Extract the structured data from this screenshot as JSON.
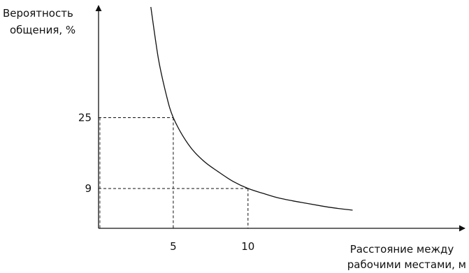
{
  "chart_data": {
    "type": "line",
    "title": "",
    "ylabel": [
      "Вероятность",
      "общения, %"
    ],
    "xlabel": [
      "Расстояние между",
      "рабочими местами, м"
    ],
    "x_ticks": [
      5,
      10
    ],
    "y_ticks": [
      9,
      25
    ],
    "xlim": [
      0,
      21
    ],
    "ylim": [
      0,
      50
    ],
    "grid": false,
    "series": [
      {
        "x": [
          3.5,
          4,
          4.5,
          5,
          6,
          7,
          8,
          9,
          10,
          11,
          12,
          13,
          14,
          15,
          16,
          17
        ],
        "y": [
          50,
          38.4,
          30.6,
          25,
          19.0,
          15.3,
          12.8,
          10.6,
          9,
          7.9,
          6.9,
          6.2,
          5.6,
          5.0,
          4.5,
          4.1
        ]
      }
    ],
    "reference_points": [
      {
        "x": 5,
        "y": 25
      },
      {
        "x": 10,
        "y": 9
      }
    ]
  }
}
